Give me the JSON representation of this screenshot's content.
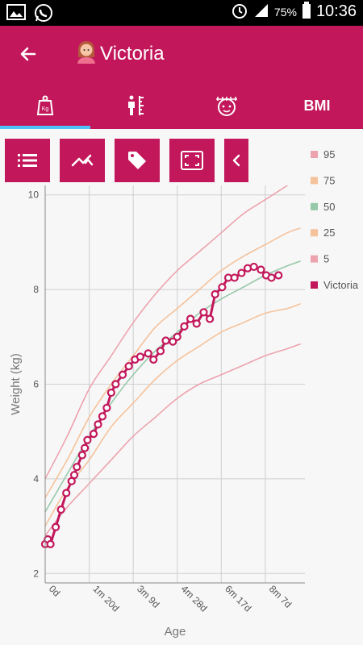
{
  "statusbar": {
    "battery": "75%",
    "time": "10:36"
  },
  "appbar": {
    "title": "Victoria"
  },
  "tabs": [
    {
      "name": "weight",
      "icon": "weight-scale-icon"
    },
    {
      "name": "height",
      "icon": "height-ruler-icon"
    },
    {
      "name": "head",
      "icon": "head-circumference-icon"
    },
    {
      "name": "bmi",
      "label": "BMI"
    }
  ],
  "toolbar": [
    {
      "icon": "list-icon"
    },
    {
      "icon": "trend-icon"
    },
    {
      "icon": "tag-icon"
    },
    {
      "icon": "fit-screen-icon"
    },
    {
      "icon": "chevron-left-icon"
    }
  ],
  "colors": {
    "primary": "#c2185b",
    "accent": "#4fc3f7",
    "p95": "#eda3ae",
    "p75": "#f5c29b",
    "p50": "#97c8a9",
    "p25": "#f5c29b",
    "p5": "#eda3ae",
    "child": "#c2185b"
  },
  "chart_data": {
    "type": "line",
    "xlabel": "Age",
    "ylabel": "Weight (kg)",
    "xlim": [
      0,
      295
    ],
    "ylim": [
      1.8,
      10.2
    ],
    "x_ticks": [
      {
        "value": 0,
        "label": "0d"
      },
      {
        "value": 50,
        "label": "1m 20d"
      },
      {
        "value": 100,
        "label": "3m 9d"
      },
      {
        "value": 150,
        "label": "4m 28d"
      },
      {
        "value": 200,
        "label": "6m 17d"
      },
      {
        "value": 250,
        "label": "8m 7d"
      }
    ],
    "y_ticks": [
      2,
      4,
      6,
      8,
      10
    ],
    "legend": [
      "95",
      "75",
      "50",
      "25",
      "5",
      "Victoria"
    ],
    "percentile_series": [
      {
        "name": "95",
        "color_key": "p95",
        "x": [
          0,
          25,
          50,
          75,
          100,
          125,
          150,
          175,
          200,
          225,
          250,
          275,
          290
        ],
        "values": [
          4.0,
          4.9,
          5.9,
          6.6,
          7.3,
          7.9,
          8.4,
          8.8,
          9.2,
          9.6,
          9.9,
          10.2,
          10.4
        ]
      },
      {
        "name": "75",
        "color_key": "p75",
        "x": [
          0,
          25,
          50,
          75,
          100,
          125,
          150,
          175,
          200,
          225,
          250,
          275,
          290
        ],
        "values": [
          3.6,
          4.4,
          5.3,
          6.0,
          6.6,
          7.2,
          7.6,
          8.0,
          8.4,
          8.7,
          8.95,
          9.2,
          9.3
        ]
      },
      {
        "name": "50",
        "color_key": "p50",
        "x": [
          0,
          25,
          50,
          75,
          100,
          125,
          150,
          175,
          200,
          225,
          250,
          275,
          290
        ],
        "values": [
          3.3,
          4.1,
          4.9,
          5.6,
          6.2,
          6.7,
          7.1,
          7.5,
          7.8,
          8.05,
          8.3,
          8.5,
          8.6
        ]
      },
      {
        "name": "25",
        "color_key": "p25",
        "x": [
          0,
          25,
          50,
          75,
          100,
          125,
          150,
          175,
          200,
          225,
          250,
          275,
          290
        ],
        "values": [
          3.0,
          3.8,
          4.4,
          5.1,
          5.6,
          6.1,
          6.5,
          6.8,
          7.1,
          7.3,
          7.5,
          7.6,
          7.7
        ]
      },
      {
        "name": "5",
        "color_key": "p5",
        "x": [
          0,
          25,
          50,
          75,
          100,
          125,
          150,
          175,
          200,
          225,
          250,
          275,
          290
        ],
        "values": [
          2.8,
          3.4,
          3.9,
          4.4,
          4.9,
          5.3,
          5.7,
          6.0,
          6.2,
          6.4,
          6.6,
          6.75,
          6.85
        ]
      }
    ],
    "child_series": {
      "name": "Victoria",
      "x": [
        0,
        3,
        6,
        12,
        18,
        24,
        30,
        33,
        36,
        42,
        45,
        48,
        55,
        60,
        65,
        70,
        75,
        80,
        88,
        95,
        102,
        108,
        117,
        123,
        131,
        137,
        145,
        150,
        158,
        165,
        172,
        180,
        187,
        193,
        201,
        208,
        215,
        223,
        230,
        237,
        245,
        251,
        257,
        265
      ],
      "values": [
        2.62,
        2.72,
        2.62,
        2.98,
        3.35,
        3.7,
        3.95,
        4.08,
        4.25,
        4.5,
        4.65,
        4.82,
        4.95,
        5.15,
        5.32,
        5.5,
        5.82,
        6.0,
        6.2,
        6.38,
        6.52,
        6.58,
        6.65,
        6.52,
        6.7,
        6.92,
        6.9,
        7.0,
        7.22,
        7.38,
        7.28,
        7.52,
        7.38,
        7.9,
        8.05,
        8.25,
        8.25,
        8.35,
        8.45,
        8.48,
        8.42,
        8.3,
        8.25,
        8.3
      ]
    }
  }
}
